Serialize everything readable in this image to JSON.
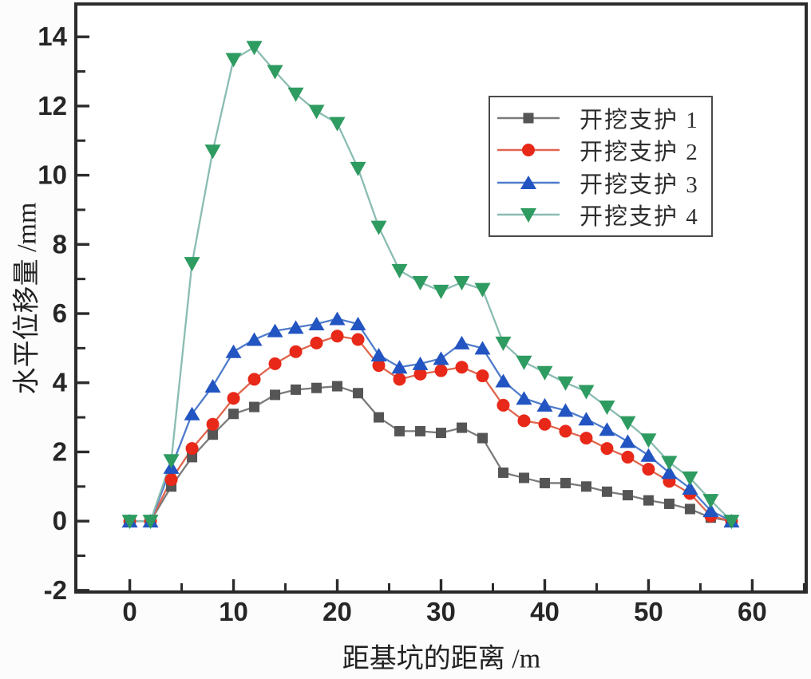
{
  "figure": {
    "background": "#fcfcfc",
    "frame_color": "#2b2b2b",
    "tick_label_color": "#262626",
    "legend_border_color": "#4a4a4a"
  },
  "chart_data": {
    "type": "line",
    "title": "",
    "xlabel": "距基坑的距离 /m",
    "ylabel": "水平位移量 /mm",
    "xlim": [
      -5.2,
      65.2
    ],
    "ylim": [
      -2.05,
      14.95
    ],
    "grid": false,
    "legend_position": "upper right",
    "x_ticks": [
      0,
      10,
      20,
      30,
      40,
      50,
      60
    ],
    "x_minor_ticks": [
      5,
      15,
      25,
      35,
      45,
      55,
      65
    ],
    "y_ticks": [
      -2,
      0,
      2,
      4,
      6,
      8,
      10,
      12,
      14
    ],
    "y_minor_ticks": [
      -1,
      1,
      3,
      5,
      7,
      9,
      11,
      13
    ],
    "x": [
      0,
      2,
      4,
      6,
      8,
      10,
      12,
      14,
      16,
      18,
      20,
      22,
      24,
      26,
      28,
      30,
      32,
      34,
      36,
      38,
      40,
      42,
      44,
      46,
      48,
      50,
      52,
      54,
      56,
      58
    ],
    "series": [
      {
        "name": "开挖支护 1",
        "marker": "square",
        "color": "#555555",
        "line_color": "#7a7a7a",
        "values": [
          0,
          0,
          1.0,
          1.85,
          2.5,
          3.1,
          3.3,
          3.65,
          3.8,
          3.85,
          3.9,
          3.7,
          3.0,
          2.6,
          2.6,
          2.55,
          2.7,
          2.4,
          1.4,
          1.25,
          1.1,
          1.1,
          1.0,
          0.85,
          0.75,
          0.6,
          0.5,
          0.35,
          0.1,
          0
        ]
      },
      {
        "name": "开挖支护 2",
        "marker": "circle",
        "color": "#e82818",
        "line_color": "#e0654e",
        "values": [
          0,
          0,
          1.2,
          2.1,
          2.8,
          3.55,
          4.1,
          4.55,
          4.9,
          5.15,
          5.35,
          5.25,
          4.5,
          4.1,
          4.25,
          4.35,
          4.45,
          4.2,
          3.35,
          2.9,
          2.8,
          2.6,
          2.4,
          2.1,
          1.85,
          1.5,
          1.15,
          0.8,
          0.15,
          0
        ]
      },
      {
        "name": "开挖支护 3",
        "marker": "triangle-up",
        "color": "#2254c2",
        "line_color": "#4f7ccc",
        "values": [
          0,
          0,
          1.55,
          3.1,
          3.9,
          4.9,
          5.25,
          5.5,
          5.6,
          5.7,
          5.85,
          5.7,
          4.8,
          4.45,
          4.55,
          4.7,
          5.15,
          5.0,
          4.05,
          3.55,
          3.35,
          3.2,
          2.95,
          2.65,
          2.3,
          1.9,
          1.4,
          0.95,
          0.3,
          0
        ]
      },
      {
        "name": "开挖支护 4",
        "marker": "triangle-down",
        "color": "#2e9b60",
        "line_color": "#8abcb2",
        "values": [
          0,
          0,
          1.75,
          7.45,
          10.7,
          13.35,
          13.7,
          13.0,
          12.35,
          11.85,
          11.5,
          10.2,
          8.5,
          7.25,
          6.9,
          6.65,
          6.9,
          6.7,
          5.15,
          4.6,
          4.3,
          4.0,
          3.75,
          3.3,
          2.85,
          2.35,
          1.7,
          1.25,
          0.6,
          0
        ]
      }
    ]
  }
}
